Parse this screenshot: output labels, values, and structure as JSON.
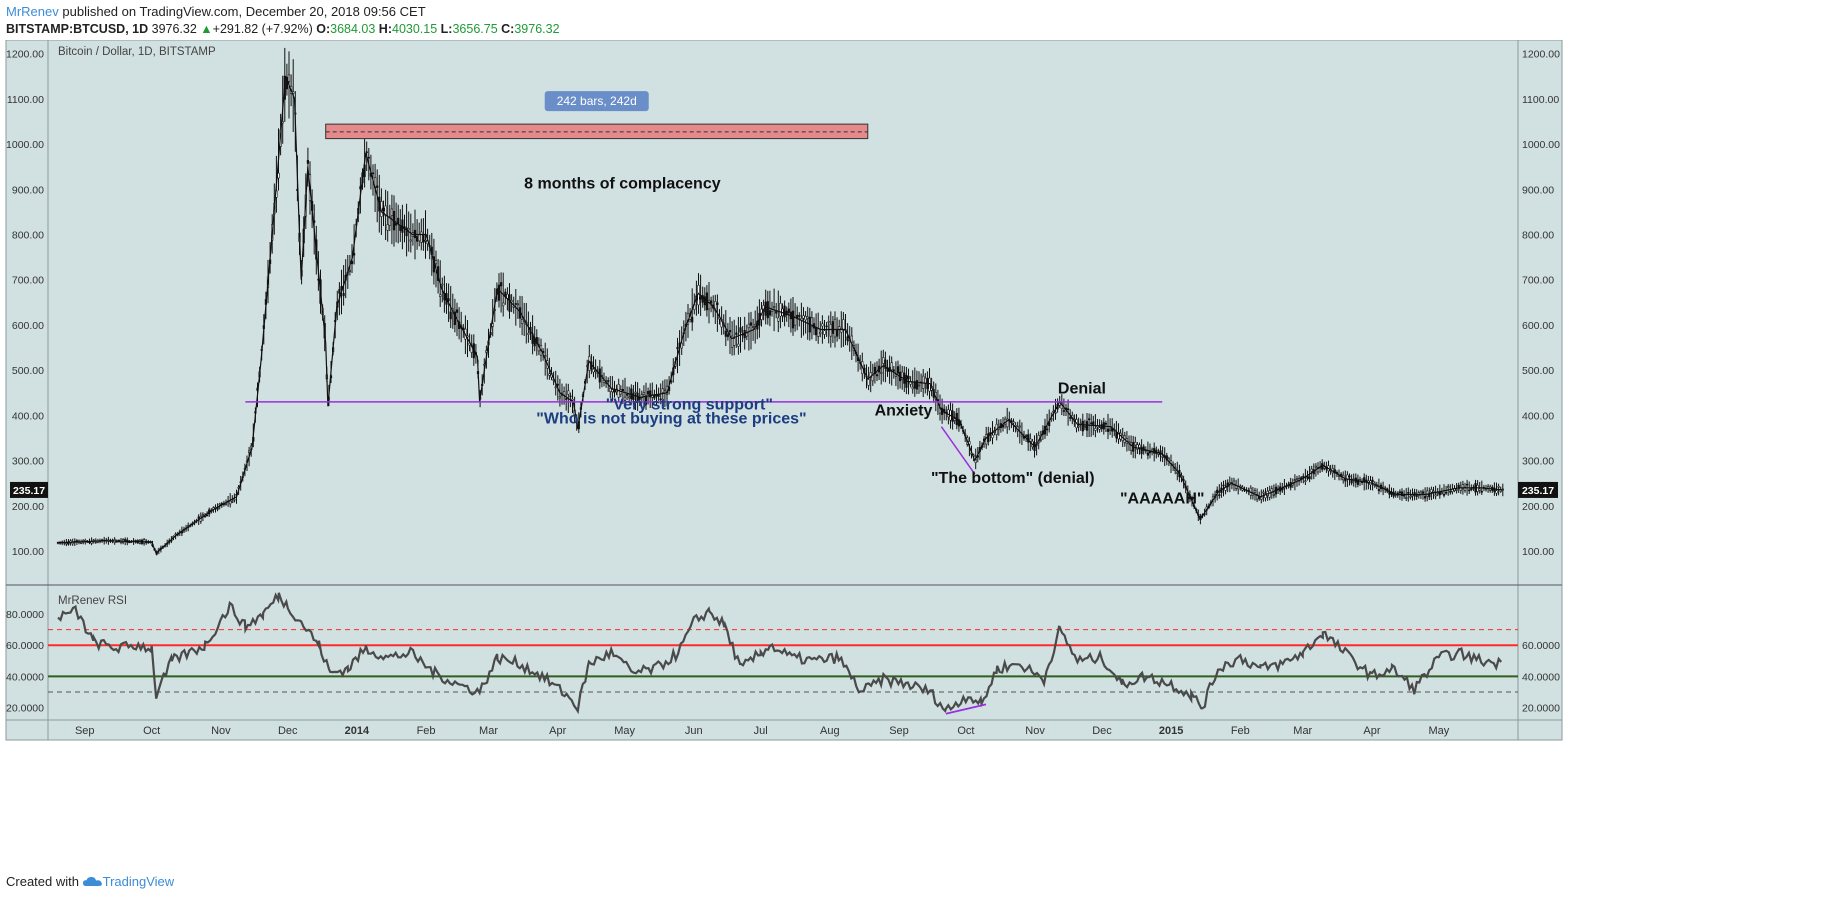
{
  "header": {
    "author": "MrRenev",
    "published": "published on TradingView.com, December 20, 2018 09:56 CET",
    "symbol": "BITSTAMP:BTCUSD, 1D",
    "last": "3976.32",
    "change_arrow": "▲",
    "change": "+291.82 (+7.92%)",
    "o_label": "O:",
    "o_value": "3684.03",
    "h_label": "H:",
    "h_value": "4030.15",
    "l_label": "L:",
    "l_value": "3656.75",
    "c_label": "C:",
    "c_value": "3976.32"
  },
  "footer": {
    "created_with": "Created with",
    "brand": "TradingView",
    "brand_icon": "tradingview-cloud-icon"
  },
  "colors": {
    "panel_bg": "#d1e0e1",
    "candles": "#111111",
    "support_line": "#9b2fdf",
    "range_box": "#e58a8c",
    "range_label_bg": "#6a8ec7",
    "rsi_line": "#4a4a4a",
    "rsi_upper": "#ff2b2b",
    "rsi_lower": "#2f5f1e",
    "price_tag": "#111111",
    "annotation_blue": "#1c3d80"
  },
  "chart_data": [
    {
      "type": "candlestick",
      "title": "Bitcoin / Dollar, 1D, BITSTAMP",
      "ylim": [
        25,
        1230
      ],
      "y_ticks": [
        "100.00",
        "200.00",
        "300.00",
        "400.00",
        "500.00",
        "600.00",
        "700.00",
        "800.00",
        "900.00",
        "1000.00",
        "1100.00",
        "1200.00"
      ],
      "x_axis": [
        "Sep",
        "Oct",
        "Nov",
        "Dec",
        "2014",
        "Feb",
        "Mar",
        "Apr",
        "May",
        "Jun",
        "Jul",
        "Aug",
        "Sep",
        "Oct",
        "Nov",
        "Dec",
        "2015",
        "Feb",
        "Mar",
        "Apr",
        "May"
      ],
      "last_price_tag": "235.17",
      "price_path": [
        [
          "2013-08-20",
          118
        ],
        [
          "2013-09-10",
          123
        ],
        [
          "2013-10-01",
          120
        ],
        [
          "2013-10-03",
          95
        ],
        [
          "2013-10-12",
          135
        ],
        [
          "2013-10-28",
          190
        ],
        [
          "2013-11-08",
          220
        ],
        [
          "2013-11-15",
          330
        ],
        [
          "2013-11-19",
          520
        ],
        [
          "2013-11-24",
          800
        ],
        [
          "2013-11-30",
          1150
        ],
        [
          "2013-12-04",
          1100
        ],
        [
          "2013-12-07",
          700
        ],
        [
          "2013-12-10",
          950
        ],
        [
          "2013-12-18",
          560
        ],
        [
          "2013-12-19",
          420
        ],
        [
          "2013-12-23",
          640
        ],
        [
          "2013-12-30",
          750
        ],
        [
          "2014-01-05",
          980
        ],
        [
          "2014-01-12",
          850
        ],
        [
          "2014-01-26",
          800
        ],
        [
          "2014-02-01",
          800
        ],
        [
          "2014-02-08",
          680
        ],
        [
          "2014-02-14",
          620
        ],
        [
          "2014-02-24",
          530
        ],
        [
          "2014-02-25",
          430
        ],
        [
          "2014-03-01",
          560
        ],
        [
          "2014-03-05",
          680
        ],
        [
          "2014-03-15",
          630
        ],
        [
          "2014-03-25",
          540
        ],
        [
          "2014-04-02",
          450
        ],
        [
          "2014-04-08",
          430
        ],
        [
          "2014-04-10",
          370
        ],
        [
          "2014-04-15",
          520
        ],
        [
          "2014-04-25",
          460
        ],
        [
          "2014-05-08",
          440
        ],
        [
          "2014-05-20",
          450
        ],
        [
          "2014-05-28",
          590
        ],
        [
          "2014-06-03",
          670
        ],
        [
          "2014-06-10",
          640
        ],
        [
          "2014-06-18",
          570
        ],
        [
          "2014-06-28",
          590
        ],
        [
          "2014-07-03",
          640
        ],
        [
          "2014-07-15",
          620
        ],
        [
          "2014-07-28",
          590
        ],
        [
          "2014-08-08",
          590
        ],
        [
          "2014-08-18",
          480
        ],
        [
          "2014-08-25",
          510
        ],
        [
          "2014-09-05",
          475
        ],
        [
          "2014-09-15",
          470
        ],
        [
          "2014-09-20",
          410
        ],
        [
          "2014-09-28",
          390
        ],
        [
          "2014-10-05",
          300
        ],
        [
          "2014-10-10",
          350
        ],
        [
          "2014-10-20",
          390
        ],
        [
          "2014-11-01",
          330
        ],
        [
          "2014-11-12",
          430
        ],
        [
          "2014-11-20",
          380
        ],
        [
          "2014-12-05",
          375
        ],
        [
          "2014-12-15",
          330
        ],
        [
          "2014-12-28",
          315
        ],
        [
          "2015-01-05",
          270
        ],
        [
          "2015-01-14",
          170
        ],
        [
          "2015-01-22",
          230
        ],
        [
          "2015-01-28",
          250
        ],
        [
          "2015-02-10",
          220
        ],
        [
          "2015-02-20",
          240
        ],
        [
          "2015-03-01",
          260
        ],
        [
          "2015-03-10",
          290
        ],
        [
          "2015-03-20",
          260
        ],
        [
          "2015-04-01",
          250
        ],
        [
          "2015-04-12",
          225
        ],
        [
          "2015-04-25",
          225
        ],
        [
          "2015-05-10",
          240
        ],
        [
          "2015-05-20",
          240
        ],
        [
          "2015-05-30",
          235
        ]
      ],
      "range_measure": {
        "start": "2013-12-18",
        "end": "2014-08-18",
        "label": "242 bars, 242d",
        "y_low": 1012,
        "y_high": 1044,
        "y_mid": 1027
      },
      "support_line": {
        "start": "2013-11-12",
        "end": "2014-12-28",
        "y": 430
      },
      "bottom_trendline": [
        [
          "2014-09-20",
          375
        ],
        [
          "2014-10-05",
          270
        ]
      ],
      "annotations": [
        {
          "text": "8 months of complacency",
          "x": "2014-04-30",
          "y": 902,
          "color": "#111111"
        },
        {
          "text": "\"Very strong support\"",
          "x": "2014-05-30",
          "y": 413,
          "color": "#1c3d80"
        },
        {
          "text": "\"Who is not buying at these prices\"",
          "x": "2014-05-22",
          "y": 382,
          "color": "#1c3d80"
        },
        {
          "text": "Anxiety",
          "x": "2014-09-03",
          "y": 400,
          "color": "#111111"
        },
        {
          "text": "\"The bottom\" (denial)",
          "x": "2014-10-22",
          "y": 250,
          "color": "#111111"
        },
        {
          "text": "Denial",
          "x": "2014-11-22",
          "y": 448,
          "color": "#111111"
        },
        {
          "text": "\"AAAAAH\"",
          "x": "2014-12-28",
          "y": 205,
          "color": "#111111"
        }
      ]
    },
    {
      "type": "line",
      "title": "MrRenev RSI",
      "ylim": [
        12,
        98
      ],
      "left_ticks": [
        "20.0000",
        "40.0000",
        "60.0000",
        "80.0000"
      ],
      "right_ticks": [
        "20.0000",
        "40.0000",
        "60.0000"
      ],
      "levels": {
        "upper_solid": 60,
        "lower_solid": 40,
        "upper_dashed": 70,
        "lower_dashed": 30
      },
      "series": [
        {
          "values": [
            [
              "2013-08-20",
              78
            ],
            [
              "2013-08-28",
              82
            ],
            [
              "2013-09-05",
              62
            ],
            [
              "2013-09-15",
              58
            ],
            [
              "2013-09-25",
              60
            ],
            [
              "2013-10-01",
              58
            ],
            [
              "2013-10-03",
              28
            ],
            [
              "2013-10-10",
              50
            ],
            [
              "2013-10-25",
              60
            ],
            [
              "2013-11-05",
              85
            ],
            [
              "2013-11-12",
              72
            ],
            [
              "2013-11-20",
              80
            ],
            [
              "2013-11-27",
              92
            ],
            [
              "2013-12-01",
              85
            ],
            [
              "2013-12-07",
              75
            ],
            [
              "2013-12-15",
              60
            ],
            [
              "2013-12-20",
              42
            ],
            [
              "2013-12-28",
              45
            ],
            [
              "2014-01-05",
              58
            ],
            [
              "2014-01-15",
              52
            ],
            [
              "2014-01-25",
              55
            ],
            [
              "2014-02-05",
              42
            ],
            [
              "2014-02-15",
              35
            ],
            [
              "2014-02-25",
              30
            ],
            [
              "2014-03-05",
              52
            ],
            [
              "2014-03-15",
              48
            ],
            [
              "2014-03-25",
              40
            ],
            [
              "2014-04-05",
              28
            ],
            [
              "2014-04-10",
              20
            ],
            [
              "2014-04-15",
              48
            ],
            [
              "2014-04-25",
              55
            ],
            [
              "2014-05-05",
              42
            ],
            [
              "2014-05-15",
              45
            ],
            [
              "2014-05-25",
              55
            ],
            [
              "2014-06-01",
              75
            ],
            [
              "2014-06-08",
              82
            ],
            [
              "2014-06-15",
              72
            ],
            [
              "2014-06-22",
              45
            ],
            [
              "2014-07-01",
              55
            ],
            [
              "2014-07-05",
              60
            ],
            [
              "2014-07-15",
              52
            ],
            [
              "2014-07-25",
              50
            ],
            [
              "2014-08-05",
              52
            ],
            [
              "2014-08-15",
              30
            ],
            [
              "2014-08-25",
              38
            ],
            [
              "2014-09-05",
              35
            ],
            [
              "2014-09-15",
              30
            ],
            [
              "2014-09-22",
              18
            ],
            [
              "2014-10-02",
              28
            ],
            [
              "2014-10-08",
              22
            ],
            [
              "2014-10-15",
              45
            ],
            [
              "2014-10-25",
              48
            ],
            [
              "2014-11-05",
              38
            ],
            [
              "2014-11-12",
              70
            ],
            [
              "2014-11-20",
              50
            ],
            [
              "2014-12-01",
              52
            ],
            [
              "2014-12-10",
              35
            ],
            [
              "2014-12-20",
              40
            ],
            [
              "2015-01-01",
              35
            ],
            [
              "2015-01-10",
              28
            ],
            [
              "2015-01-15",
              20
            ],
            [
              "2015-01-22",
              45
            ],
            [
              "2015-02-01",
              52
            ],
            [
              "2015-02-10",
              45
            ],
            [
              "2015-02-20",
              48
            ],
            [
              "2015-03-01",
              55
            ],
            [
              "2015-03-10",
              68
            ],
            [
              "2015-03-20",
              55
            ],
            [
              "2015-04-01",
              40
            ],
            [
              "2015-04-10",
              45
            ],
            [
              "2015-04-20",
              32
            ],
            [
              "2015-05-01",
              52
            ],
            [
              "2015-05-10",
              55
            ],
            [
              "2015-05-20",
              50
            ],
            [
              "2015-05-30",
              48
            ]
          ]
        }
      ],
      "divergence_line": [
        [
          "2014-09-22",
          16
        ],
        [
          "2014-10-10",
          22
        ]
      ]
    }
  ]
}
